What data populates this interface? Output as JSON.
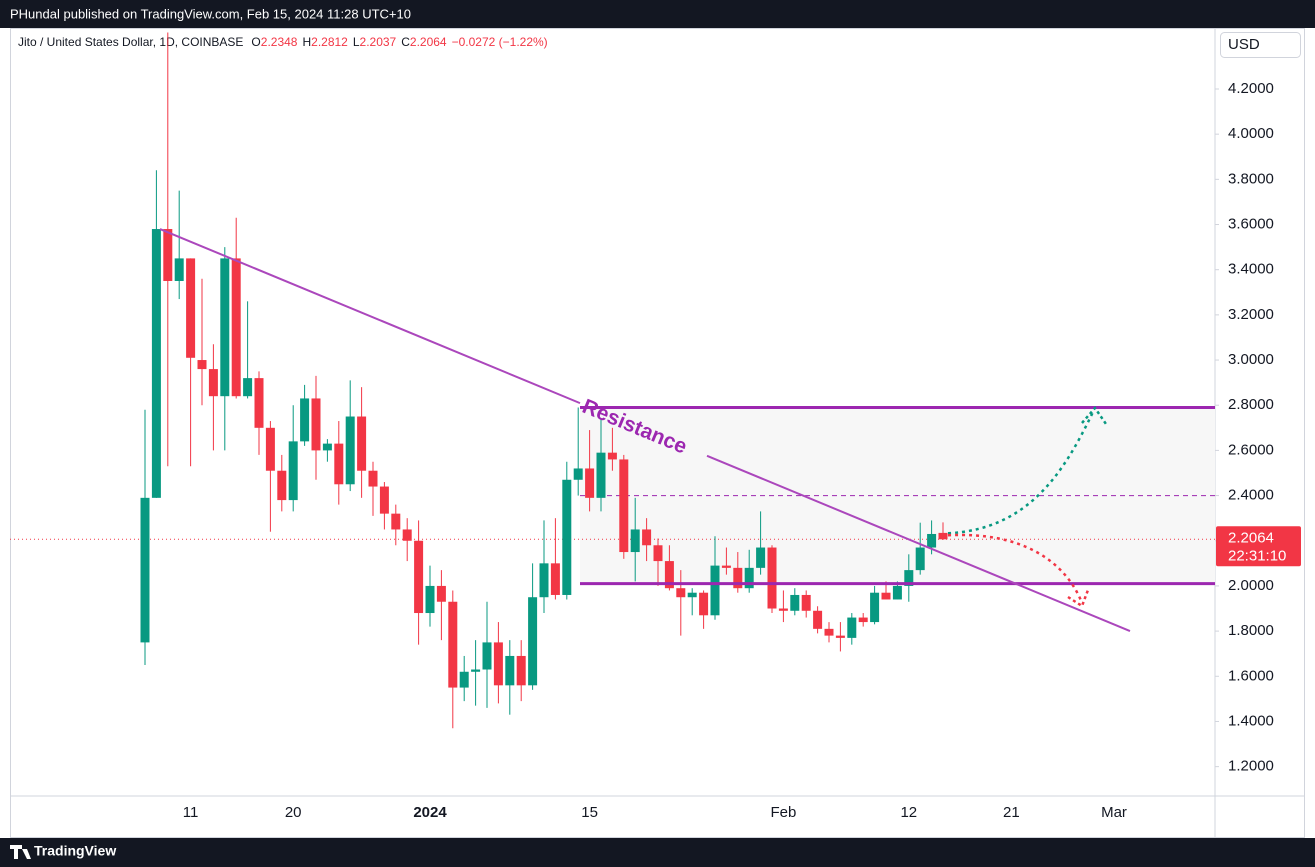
{
  "header": "PHundal published on TradingView.com, Feb 15, 2024 11:28 UTC+10",
  "footer": "TradingView",
  "chart_data": {
    "type": "candlestick",
    "symbol": "Jito / United States Dollar, 1D, COINBASE",
    "ohlc_labels": [
      "O",
      "H",
      "L",
      "C"
    ],
    "change": "−0.0272 (−1.22%)",
    "currency": "USD",
    "countdown": "22:31:10",
    "categories": [
      null,
      null,
      null,
      null,
      "11",
      null,
      null,
      null,
      null,
      null,
      null,
      null,
      null,
      "20",
      null,
      null,
      null,
      null,
      null,
      null,
      null,
      null,
      null,
      null,
      null,
      "2024",
      null,
      null,
      null,
      null,
      null,
      null,
      null,
      null,
      null,
      null,
      null,
      null,
      null,
      "15",
      null,
      null,
      null,
      null,
      null,
      null,
      null,
      null,
      null,
      null,
      null,
      null,
      null,
      null,
      null,
      null,
      "Feb",
      null,
      null,
      null,
      null,
      null,
      null,
      null,
      null,
      null,
      null,
      "12",
      null,
      null,
      null,
      null,
      null,
      null,
      null,
      null,
      "21",
      null,
      null,
      null,
      null,
      null,
      null,
      null,
      null,
      "Mar"
    ],
    "open": [
      1.75,
      2.39,
      3.58,
      3.35,
      3.45,
      3.0,
      2.96,
      2.84,
      3.45,
      2.84,
      2.92,
      2.7,
      2.51,
      2.38,
      2.64,
      2.83,
      2.6,
      2.63,
      2.45,
      2.75,
      2.51,
      2.44,
      2.32,
      2.25,
      2.2,
      1.88,
      2.0,
      1.93,
      1.55,
      1.62,
      1.63,
      1.75,
      1.56,
      1.69,
      1.56,
      1.95,
      2.1,
      1.96,
      2.47,
      2.52,
      2.39,
      2.59,
      2.56,
      2.15,
      2.25,
      2.18,
      2.11,
      1.99,
      1.95,
      1.97,
      1.87,
      2.09,
      2.08,
      1.99,
      2.08,
      2.17,
      1.9,
      1.89,
      1.96,
      1.89,
      1.81,
      1.78,
      1.77,
      1.86,
      1.84,
      1.97,
      1.94,
      2.0,
      2.07,
      2.17,
      2.2348,
      null,
      null,
      null,
      null,
      null,
      null,
      null,
      null,
      null,
      null,
      null,
      null,
      null,
      null,
      null
    ],
    "high": [
      2.78,
      3.84,
      4.45,
      3.75,
      3.45,
      3.36,
      3.07,
      3.5,
      3.63,
      3.26,
      2.95,
      2.73,
      2.58,
      2.8,
      2.89,
      2.93,
      2.65,
      2.73,
      2.91,
      2.88,
      2.55,
      2.46,
      2.36,
      2.3,
      2.29,
      2.09,
      2.07,
      1.98,
      1.69,
      1.76,
      1.93,
      1.84,
      1.76,
      1.76,
      2.1,
      2.29,
      2.3,
      2.55,
      2.79,
      2.69,
      2.74,
      2.7,
      2.58,
      2.39,
      2.3,
      2.21,
      2.18,
      2.07,
      1.99,
      1.98,
      2.22,
      2.17,
      2.15,
      2.16,
      2.33,
      2.18,
      1.98,
      1.99,
      1.98,
      1.91,
      1.84,
      1.84,
      1.88,
      1.88,
      2.0,
      2.02,
      2.02,
      2.14,
      2.28,
      2.29,
      2.2812,
      null,
      null,
      null,
      null,
      null,
      null,
      null,
      null,
      null,
      null,
      null,
      null,
      null,
      null,
      null
    ],
    "low": [
      1.65,
      2.39,
      2.53,
      3.27,
      2.53,
      2.8,
      2.6,
      2.6,
      2.83,
      2.83,
      2.58,
      2.24,
      2.33,
      2.33,
      2.62,
      2.47,
      2.55,
      2.36,
      2.42,
      2.39,
      2.31,
      2.25,
      2.18,
      2.11,
      1.74,
      1.82,
      1.76,
      1.37,
      1.49,
      1.47,
      1.46,
      1.48,
      1.43,
      1.49,
      1.54,
      1.88,
      1.94,
      1.94,
      2.4,
      2.33,
      2.33,
      2.51,
      2.12,
      2.02,
      2.11,
      2.0,
      1.98,
      1.78,
      1.87,
      1.81,
      1.85,
      2.05,
      1.97,
      1.97,
      2.05,
      1.88,
      1.84,
      1.87,
      1.86,
      1.79,
      1.75,
      1.71,
      1.74,
      1.82,
      1.83,
      1.94,
      1.94,
      1.93,
      2.05,
      2.14,
      2.2037,
      null,
      null,
      null,
      null,
      null,
      null,
      null,
      null,
      null,
      null,
      null,
      null,
      null,
      null,
      null
    ],
    "close": [
      2.39,
      3.58,
      3.35,
      3.45,
      3.01,
      2.96,
      2.84,
      3.45,
      2.84,
      2.92,
      2.7,
      2.51,
      2.38,
      2.64,
      2.83,
      2.6,
      2.63,
      2.45,
      2.75,
      2.51,
      2.44,
      2.32,
      2.25,
      2.2,
      1.88,
      2.0,
      1.93,
      1.55,
      1.62,
      1.63,
      1.75,
      1.56,
      1.69,
      1.56,
      1.95,
      2.1,
      1.96,
      2.47,
      2.52,
      2.39,
      2.59,
      2.56,
      2.15,
      2.25,
      2.18,
      2.11,
      1.99,
      1.95,
      1.97,
      1.87,
      2.09,
      2.08,
      1.99,
      2.08,
      2.17,
      1.9,
      1.89,
      1.96,
      1.89,
      1.81,
      1.78,
      1.77,
      1.86,
      1.84,
      1.97,
      1.94,
      2.0,
      2.07,
      2.17,
      2.23,
      2.2064,
      null,
      null,
      null,
      null,
      null,
      null,
      null,
      null,
      null,
      null,
      null,
      null,
      null,
      null,
      null
    ],
    "up_color": "#089981",
    "down_color": "#f23645",
    "ylim": [
      1.07,
      4.47
    ],
    "yticks": [
      {
        "value": 1.2,
        "label": "1.2000"
      },
      {
        "value": 1.4,
        "label": "1.4000"
      },
      {
        "value": 1.6,
        "label": "1.6000"
      },
      {
        "value": 1.8,
        "label": "1.8000"
      },
      {
        "value": 2,
        "label": "2.0000"
      },
      {
        "value": 2.2,
        "label": "2.2000"
      },
      {
        "value": 2.4,
        "label": "2.4000"
      },
      {
        "value": 2.6,
        "label": "2.6000"
      },
      {
        "value": 2.8,
        "label": "2.8000"
      },
      {
        "value": 3,
        "label": "3.0000"
      },
      {
        "value": 3.2,
        "label": "3.2000"
      },
      {
        "value": 3.4,
        "label": "3.4000"
      },
      {
        "value": 3.6,
        "label": "3.6000"
      },
      {
        "value": 3.8,
        "label": "3.8000"
      },
      {
        "value": 4,
        "label": "4.0000"
      },
      {
        "value": 4.2,
        "label": "4.2000"
      }
    ],
    "annotations": {
      "text": "Resistance",
      "levels": [
        2.79,
        2.4,
        2.01
      ],
      "trendline": [
        3.58,
        1.8
      ]
    }
  }
}
